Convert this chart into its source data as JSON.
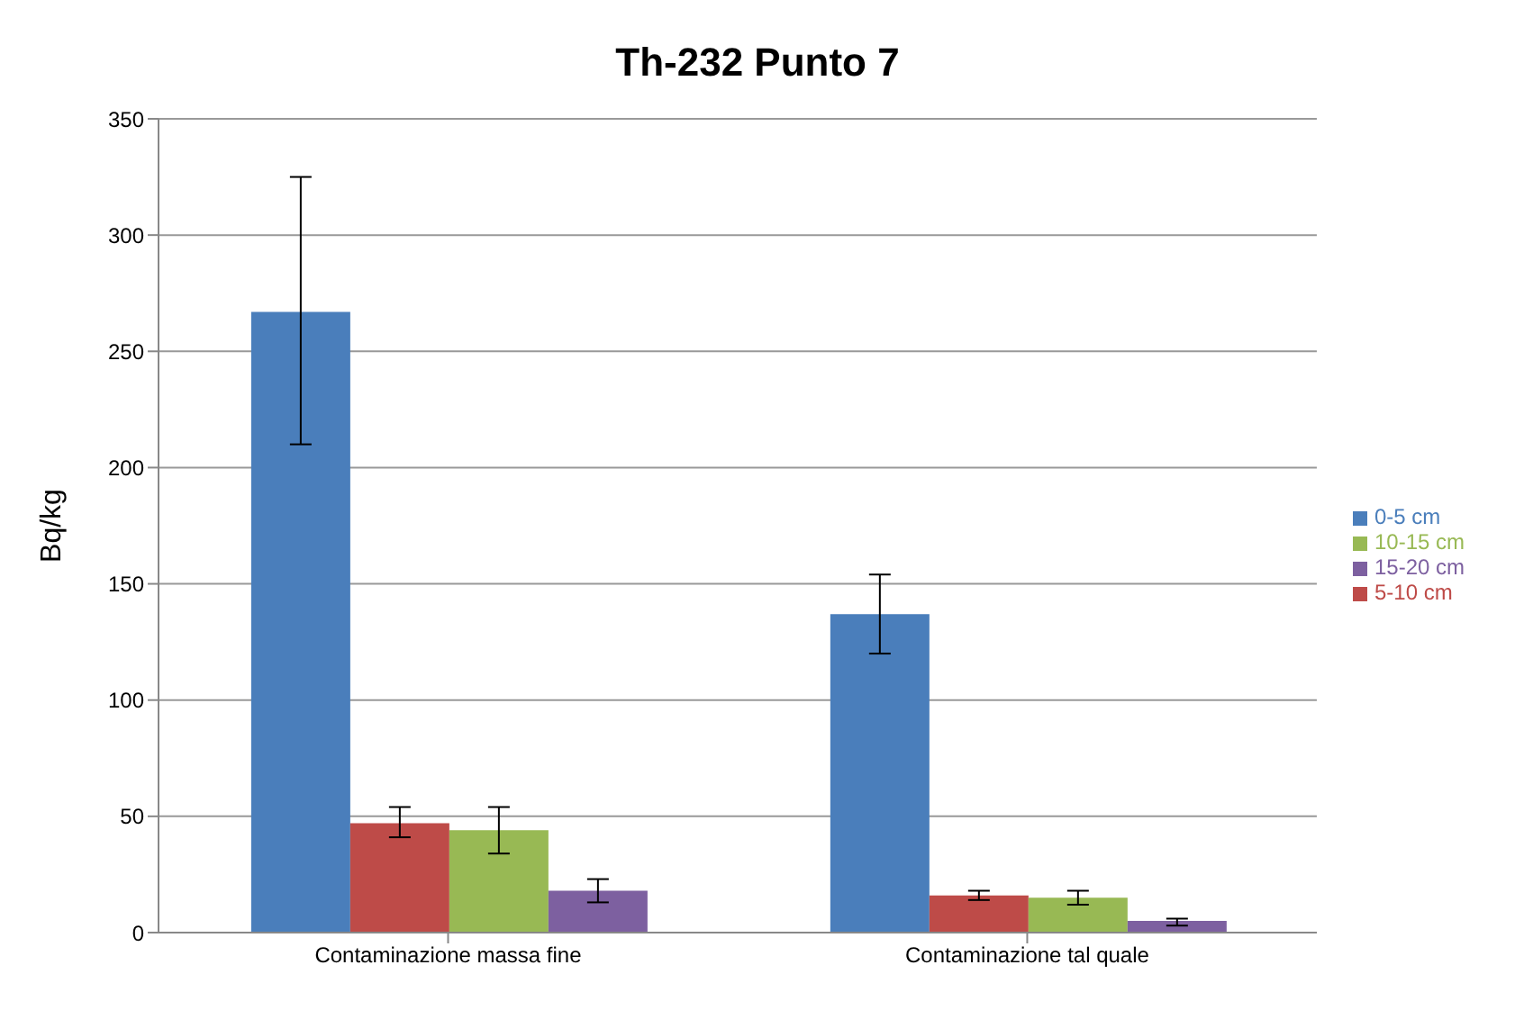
{
  "chart_data": {
    "type": "bar",
    "title": "Th-232 Punto 7",
    "ylabel": "Bq/kg",
    "categories": [
      "Contaminazione massa fine",
      "Contaminazione tal quale"
    ],
    "series": [
      {
        "name": "0-5 cm",
        "color": "#4a7ebb",
        "values": [
          267,
          137
        ],
        "errors": [
          [
            210,
            325
          ],
          [
            120,
            154
          ]
        ]
      },
      {
        "name": "5-10 cm",
        "color": "#be4b48",
        "values": [
          47,
          16
        ],
        "errors": [
          [
            41,
            54
          ],
          [
            14,
            18
          ]
        ]
      },
      {
        "name": "10-15 cm",
        "color": "#98b954",
        "values": [
          44,
          15
        ],
        "errors": [
          [
            34,
            54
          ],
          [
            12,
            18
          ]
        ]
      },
      {
        "name": "15-20 cm",
        "color": "#7d60a0",
        "values": [
          18,
          5
        ],
        "errors": [
          [
            13,
            23
          ],
          [
            3,
            6
          ]
        ]
      }
    ],
    "ylim": [
      0,
      350
    ],
    "yticks": [
      0,
      50,
      100,
      150,
      200,
      250,
      300,
      350
    ],
    "grid": "y",
    "legend": "right"
  }
}
